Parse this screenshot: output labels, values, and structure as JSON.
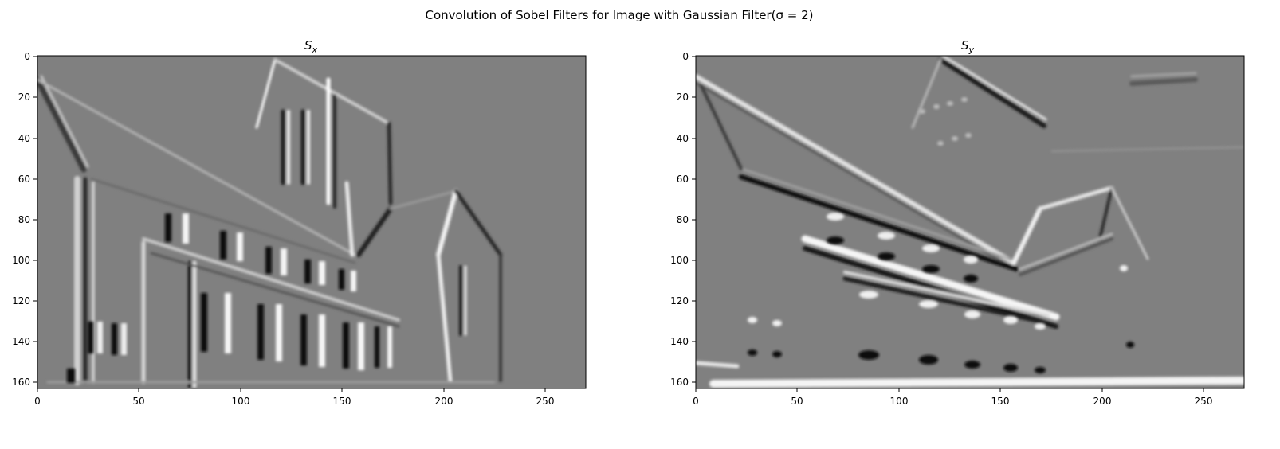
{
  "figure": {
    "suptitle": "Convolution of Sobel Filters for Image with Gaussian Filter(σ = 2)"
  },
  "panels": [
    {
      "title_main": "S",
      "title_sub": "x",
      "xticks": [
        "0",
        "50",
        "100",
        "150",
        "200",
        "250"
      ],
      "yticks": [
        "0",
        "20",
        "40",
        "60",
        "80",
        "100",
        "120",
        "140",
        "160"
      ]
    },
    {
      "title_main": "S",
      "title_sub": "y",
      "xticks": [
        "0",
        "50",
        "100",
        "150",
        "200",
        "250"
      ],
      "yticks": [
        "0",
        "20",
        "40",
        "60",
        "80",
        "100",
        "120",
        "140",
        "160"
      ]
    }
  ],
  "colors": {
    "background_gray": "#808080",
    "axis": "#000000"
  }
}
